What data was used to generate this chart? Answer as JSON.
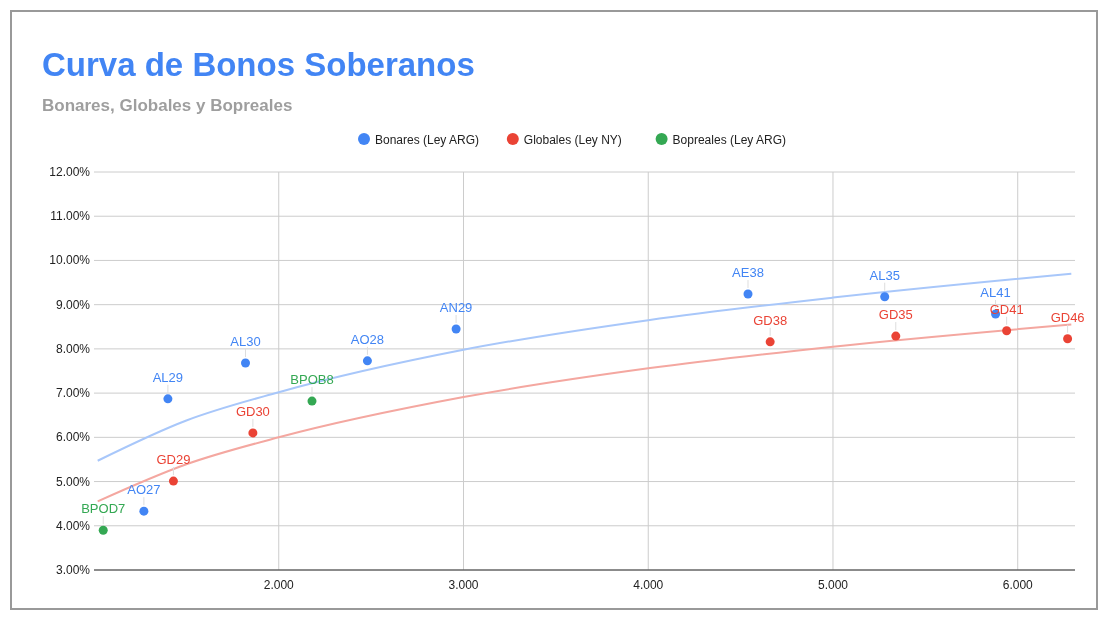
{
  "chart_data": {
    "type": "scatter",
    "title": "Curva de Bonos Soberanos",
    "subtitle": "Bonares, Globales y Bopreales",
    "xlim": [
      1.0,
      6.31
    ],
    "xticks": [
      {
        "value": 2,
        "label": "2.000"
      },
      {
        "value": 3,
        "label": "3.000"
      },
      {
        "value": 4,
        "label": "4.000"
      },
      {
        "value": 5,
        "label": "5.000"
      },
      {
        "value": 6,
        "label": "6.000"
      }
    ],
    "ylim": [
      3,
      12
    ],
    "yticks": [
      {
        "value": 3,
        "label": "3.00%"
      },
      {
        "value": 4,
        "label": "4.00%"
      },
      {
        "value": 5,
        "label": "5.00%"
      },
      {
        "value": 6,
        "label": "6.00%"
      },
      {
        "value": 7,
        "label": "7.00%"
      },
      {
        "value": 8,
        "label": "8.00%"
      },
      {
        "value": 9,
        "label": "9.00%"
      },
      {
        "value": 10,
        "label": "10.00%"
      },
      {
        "value": 11,
        "label": "11.00%"
      },
      {
        "value": 12,
        "label": "12.00%"
      }
    ],
    "grid": true,
    "legend": "top",
    "marker": "circle",
    "series": [
      {
        "name": "Bonares (Ley ARG)",
        "color": "#4285f4",
        "x": [
          1.27,
          1.4,
          1.82,
          2.48,
          2.96,
          4.54,
          5.28,
          5.88
        ],
        "values": [
          4.33,
          6.87,
          7.68,
          7.73,
          8.45,
          9.24,
          9.18,
          8.79
        ],
        "value_labels": [
          "AO27",
          "AL29",
          "AL30",
          "AO28",
          "AN29",
          "AE38",
          "AL35",
          "AL41"
        ]
      },
      {
        "name": "Globales (Ley NY)",
        "color": "#ea4335",
        "x": [
          1.43,
          1.86,
          4.66,
          5.34,
          5.94,
          6.27
        ],
        "values": [
          5.01,
          6.1,
          8.16,
          8.29,
          8.41,
          8.23
        ],
        "value_labels": [
          "GD29",
          "GD30",
          "GD38",
          "GD35",
          "GD41",
          "GD46"
        ]
      },
      {
        "name": "Bopreales (Ley ARG)",
        "color": "#34a853",
        "x": [
          1.05,
          2.18
        ],
        "values": [
          3.9,
          6.82
        ],
        "value_labels": [
          "BPOD7",
          "BPOB8"
        ]
      },
      {
        "type": "line",
        "marker": "none",
        "color": "#a8c7fa",
        "x": [
          1.02,
          1.5,
          2,
          3,
          4,
          5,
          6.29
        ],
        "values": [
          5.47,
          6.38,
          7.02,
          7.98,
          8.65,
          9.16,
          9.7
        ]
      },
      {
        "type": "line",
        "marker": "none",
        "color": "#f4a7a0",
        "x": [
          1.02,
          1.5,
          2,
          3,
          4,
          5,
          6.29
        ],
        "values": [
          4.55,
          5.39,
          6.0,
          6.91,
          7.56,
          8.05,
          8.55
        ]
      }
    ]
  }
}
